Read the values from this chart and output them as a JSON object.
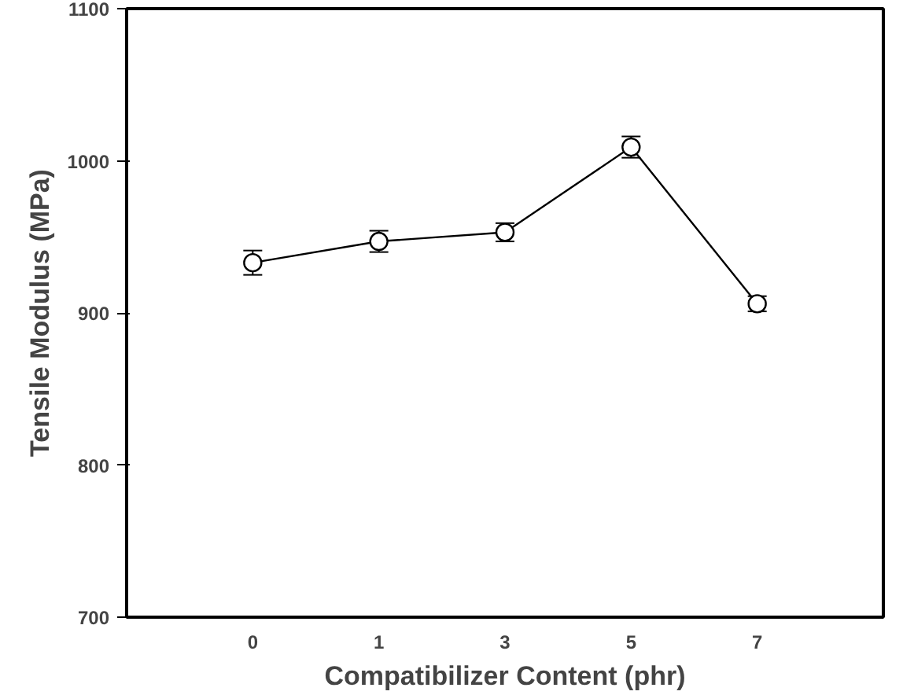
{
  "chart_data": {
    "type": "line",
    "xlabel": "Compatibilizer Content (phr)",
    "ylabel": "Tensile Modulus (MPa)",
    "categories": [
      "0",
      "1",
      "3",
      "5",
      "7"
    ],
    "series": [
      {
        "color": "#000000",
        "values": [
          933,
          947,
          953,
          1009,
          906
        ],
        "errors": [
          8,
          7,
          6,
          7,
          5
        ]
      }
    ],
    "ylim": [
      700,
      1100
    ],
    "yticks": [
      700,
      800,
      900,
      1000,
      1100
    ],
    "marker": "circle",
    "line_style": "solid",
    "grid": false
  }
}
